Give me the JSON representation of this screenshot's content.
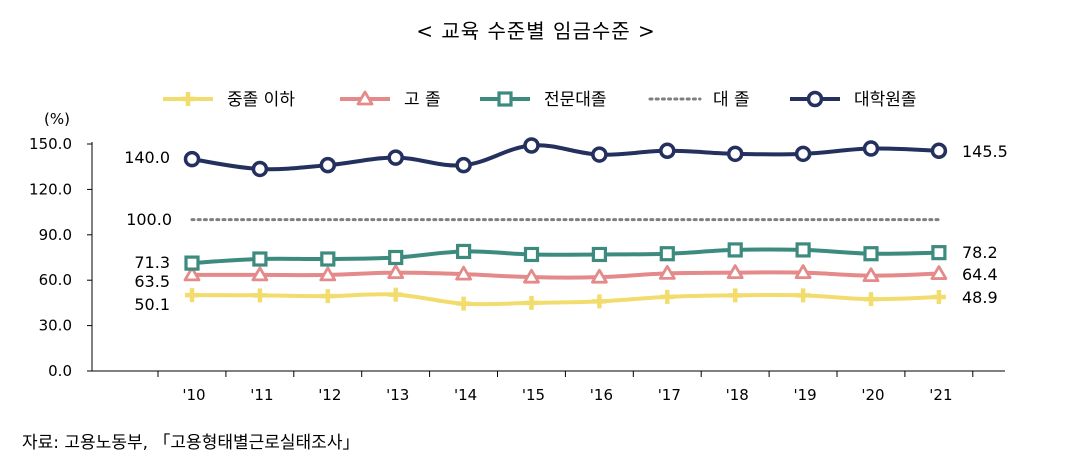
{
  "chart_data": {
    "type": "line",
    "title": "< 교육 수준별 임금수준 >",
    "ylabel": "(%)",
    "xlabel": "",
    "ylim": [
      0,
      150
    ],
    "yticks": [
      "0.0",
      "30.0",
      "60.0",
      "90.0",
      "120.0",
      "150.0"
    ],
    "ytick_values": [
      0,
      30,
      60,
      90,
      120,
      150
    ],
    "categories": [
      "'10",
      "'11",
      "'12",
      "'13",
      "'14",
      "'15",
      "'16",
      "'17",
      "'18",
      "'19",
      "'20",
      "'21"
    ],
    "legend_position": "top",
    "series": [
      {
        "name": "중졸 이하",
        "color": "#f2dc6e",
        "marker": "plus",
        "values": [
          50.1,
          50.0,
          49.5,
          50.5,
          44.5,
          45.0,
          46.0,
          49.0,
          50.0,
          50.0,
          47.5,
          48.9
        ],
        "start_label": "50.1",
        "end_label": "48.9"
      },
      {
        "name": "고 졸",
        "color": "#e58a8a",
        "marker": "triangle",
        "values": [
          63.5,
          63.5,
          63.5,
          65.0,
          64.0,
          62.0,
          62.0,
          64.5,
          65.0,
          65.0,
          63.0,
          64.4
        ],
        "start_label": "63.5",
        "end_label": "64.4"
      },
      {
        "name": "전문대졸",
        "color": "#3d8a7e",
        "marker": "square",
        "values": [
          71.3,
          74.0,
          74.0,
          75.0,
          79.0,
          77.0,
          77.0,
          77.5,
          80.0,
          80.0,
          77.5,
          78.2
        ],
        "start_label": "71.3",
        "end_label": "78.2"
      },
      {
        "name": "대 졸",
        "color": "#7f7f7f",
        "marker": "none",
        "dotted": true,
        "values": [
          100,
          100,
          100,
          100,
          100,
          100,
          100,
          100,
          100,
          100,
          100,
          100
        ],
        "start_label": "100.0",
        "end_label": ""
      },
      {
        "name": "대학원졸",
        "color": "#24305e",
        "marker": "circle",
        "values": [
          140.0,
          133.5,
          136.0,
          141.0,
          136.0,
          149.0,
          143.0,
          145.5,
          143.5,
          143.5,
          147.0,
          145.5
        ],
        "start_label": "140.0",
        "end_label": "145.5"
      }
    ]
  },
  "source_text": "자료: 고용노동부, 「고용형태별근로실태조사」"
}
